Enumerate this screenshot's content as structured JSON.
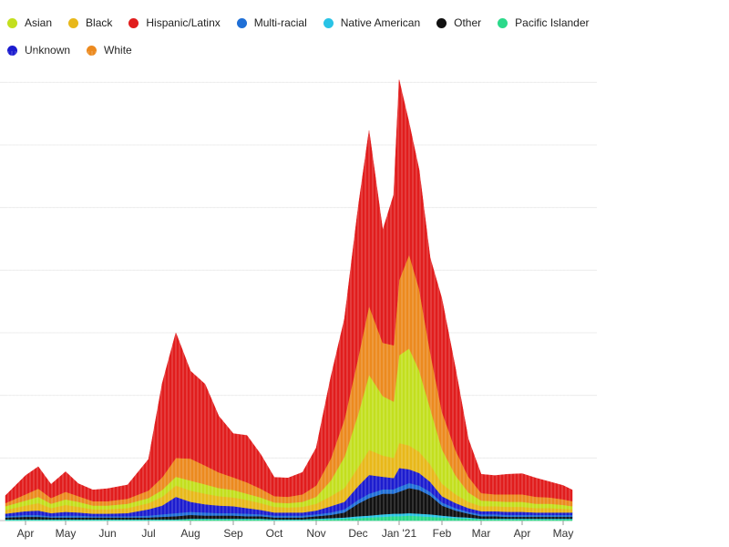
{
  "chart_data": {
    "type": "area",
    "title": "",
    "xlabel": "",
    "ylabel": "",
    "grid": true,
    "legend_placement": "top-left",
    "x_ticks": [
      "Apr",
      "May",
      "Jun",
      "Jul",
      "Aug",
      "Sep",
      "Oct",
      "Nov",
      "Dec",
      "Jan '21",
      "Feb",
      "Mar",
      "Apr",
      "May"
    ],
    "y_max": 7.5,
    "y_gridlines": [
      1,
      2,
      3,
      4,
      5,
      6,
      7
    ],
    "x": [
      "Mar 15",
      "Apr 1",
      "Apr 10",
      "Apr 20",
      "May 1",
      "May 10",
      "May 20",
      "Jun 1",
      "Jun 15",
      "Jul 1",
      "Jul 10",
      "Jul 20",
      "Aug 1",
      "Aug 10",
      "Aug 20",
      "Sep 1",
      "Sep 10",
      "Sep 20",
      "Oct 1",
      "Oct 10",
      "Oct 20",
      "Nov 1",
      "Nov 10",
      "Nov 20",
      "Dec 1",
      "Dec 10",
      "Dec 20",
      "Jan 1",
      "Jan 5",
      "Jan 10",
      "Jan 15",
      "Jan 20",
      "Feb 1",
      "Feb 10",
      "Feb 20",
      "Mar 1",
      "Mar 10",
      "Mar 20",
      "Apr 1",
      "Apr 10",
      "Apr 20",
      "May 1",
      "May 5"
    ],
    "series": [
      {
        "name": "Pacific Islander",
        "color": "#2bd98a",
        "values": [
          0.01,
          0.01,
          0.01,
          0.01,
          0.01,
          0.01,
          0.01,
          0.01,
          0.01,
          0.01,
          0.01,
          0.01,
          0.02,
          0.02,
          0.02,
          0.02,
          0.02,
          0.02,
          0.01,
          0.01,
          0.01,
          0.02,
          0.02,
          0.03,
          0.04,
          0.05,
          0.06,
          0.07,
          0.07,
          0.08,
          0.07,
          0.06,
          0.05,
          0.04,
          0.03,
          0.02,
          0.02,
          0.02,
          0.02,
          0.02,
          0.02,
          0.02,
          0.02
        ]
      },
      {
        "name": "Native American",
        "color": "#29c3e6",
        "values": [
          0.01,
          0.01,
          0.01,
          0.01,
          0.01,
          0.01,
          0.01,
          0.01,
          0.01,
          0.01,
          0.01,
          0.01,
          0.01,
          0.01,
          0.01,
          0.01,
          0.01,
          0.01,
          0.01,
          0.01,
          0.01,
          0.01,
          0.02,
          0.02,
          0.03,
          0.03,
          0.04,
          0.04,
          0.04,
          0.04,
          0.04,
          0.04,
          0.03,
          0.02,
          0.02,
          0.01,
          0.01,
          0.01,
          0.01,
          0.01,
          0.01,
          0.01,
          0.01
        ]
      },
      {
        "name": "Other",
        "color": "#111111",
        "values": [
          0.03,
          0.04,
          0.04,
          0.03,
          0.03,
          0.03,
          0.03,
          0.03,
          0.03,
          0.03,
          0.04,
          0.05,
          0.06,
          0.05,
          0.05,
          0.05,
          0.04,
          0.04,
          0.03,
          0.03,
          0.03,
          0.04,
          0.05,
          0.08,
          0.2,
          0.28,
          0.33,
          0.32,
          0.35,
          0.4,
          0.38,
          0.3,
          0.16,
          0.1,
          0.06,
          0.04,
          0.04,
          0.03,
          0.03,
          0.03,
          0.03,
          0.03,
          0.03
        ]
      },
      {
        "name": "Multi-racial",
        "color": "#1f6fd6",
        "values": [
          0.02,
          0.03,
          0.03,
          0.02,
          0.03,
          0.03,
          0.02,
          0.02,
          0.02,
          0.03,
          0.04,
          0.05,
          0.05,
          0.05,
          0.04,
          0.04,
          0.04,
          0.03,
          0.03,
          0.03,
          0.03,
          0.03,
          0.04,
          0.05,
          0.06,
          0.07,
          0.07,
          0.07,
          0.08,
          0.08,
          0.07,
          0.06,
          0.05,
          0.04,
          0.03,
          0.03,
          0.03,
          0.03,
          0.03,
          0.03,
          0.03,
          0.03,
          0.03
        ]
      },
      {
        "name": "Unknown",
        "color": "#1c1ccf",
        "values": [
          0.04,
          0.06,
          0.07,
          0.05,
          0.06,
          0.05,
          0.04,
          0.04,
          0.05,
          0.1,
          0.14,
          0.26,
          0.16,
          0.13,
          0.12,
          0.11,
          0.09,
          0.07,
          0.05,
          0.05,
          0.05,
          0.06,
          0.1,
          0.12,
          0.22,
          0.3,
          0.2,
          0.18,
          0.3,
          0.22,
          0.2,
          0.16,
          0.1,
          0.08,
          0.06,
          0.05,
          0.05,
          0.05,
          0.05,
          0.04,
          0.04,
          0.04,
          0.04
        ]
      },
      {
        "name": "Black",
        "color": "#e8b81a",
        "values": [
          0.06,
          0.09,
          0.12,
          0.08,
          0.11,
          0.09,
          0.07,
          0.07,
          0.08,
          0.1,
          0.14,
          0.18,
          0.18,
          0.17,
          0.15,
          0.14,
          0.13,
          0.11,
          0.09,
          0.08,
          0.09,
          0.11,
          0.16,
          0.22,
          0.3,
          0.4,
          0.34,
          0.32,
          0.4,
          0.38,
          0.34,
          0.28,
          0.2,
          0.14,
          0.1,
          0.08,
          0.08,
          0.08,
          0.08,
          0.07,
          0.07,
          0.06,
          0.05
        ]
      },
      {
        "name": "Asian",
        "color": "#c3df1e",
        "values": [
          0.06,
          0.08,
          0.1,
          0.07,
          0.09,
          0.08,
          0.06,
          0.06,
          0.07,
          0.08,
          0.11,
          0.14,
          0.16,
          0.15,
          0.13,
          0.12,
          0.1,
          0.09,
          0.07,
          0.07,
          0.08,
          0.11,
          0.25,
          0.5,
          0.85,
          1.2,
          0.95,
          0.9,
          1.4,
          1.55,
          1.3,
          0.9,
          0.55,
          0.3,
          0.15,
          0.09,
          0.08,
          0.08,
          0.08,
          0.07,
          0.07,
          0.06,
          0.05
        ]
      },
      {
        "name": "White",
        "color": "#ec8a1f",
        "values": [
          0.05,
          0.1,
          0.13,
          0.09,
          0.12,
          0.09,
          0.07,
          0.07,
          0.08,
          0.12,
          0.2,
          0.3,
          0.35,
          0.3,
          0.25,
          0.2,
          0.18,
          0.14,
          0.1,
          0.1,
          0.12,
          0.18,
          0.35,
          0.6,
          0.9,
          1.1,
          0.85,
          0.9,
          1.2,
          1.5,
          1.3,
          0.9,
          0.6,
          0.4,
          0.25,
          0.12,
          0.11,
          0.12,
          0.12,
          0.11,
          0.1,
          0.09,
          0.08
        ]
      },
      {
        "name": "Hispanic/Latinx",
        "color": "#e11d1d",
        "values": [
          0.12,
          0.3,
          0.35,
          0.22,
          0.32,
          0.2,
          0.18,
          0.2,
          0.22,
          0.5,
          1.5,
          2.0,
          1.4,
          1.3,
          0.9,
          0.7,
          0.75,
          0.55,
          0.3,
          0.3,
          0.35,
          0.6,
          1.3,
          1.6,
          2.4,
          2.8,
          1.8,
          2.4,
          3.2,
          2.1,
          1.9,
          1.5,
          1.8,
          1.3,
          0.6,
          0.3,
          0.3,
          0.32,
          0.33,
          0.3,
          0.25,
          0.22,
          0.18
        ]
      }
    ]
  }
}
